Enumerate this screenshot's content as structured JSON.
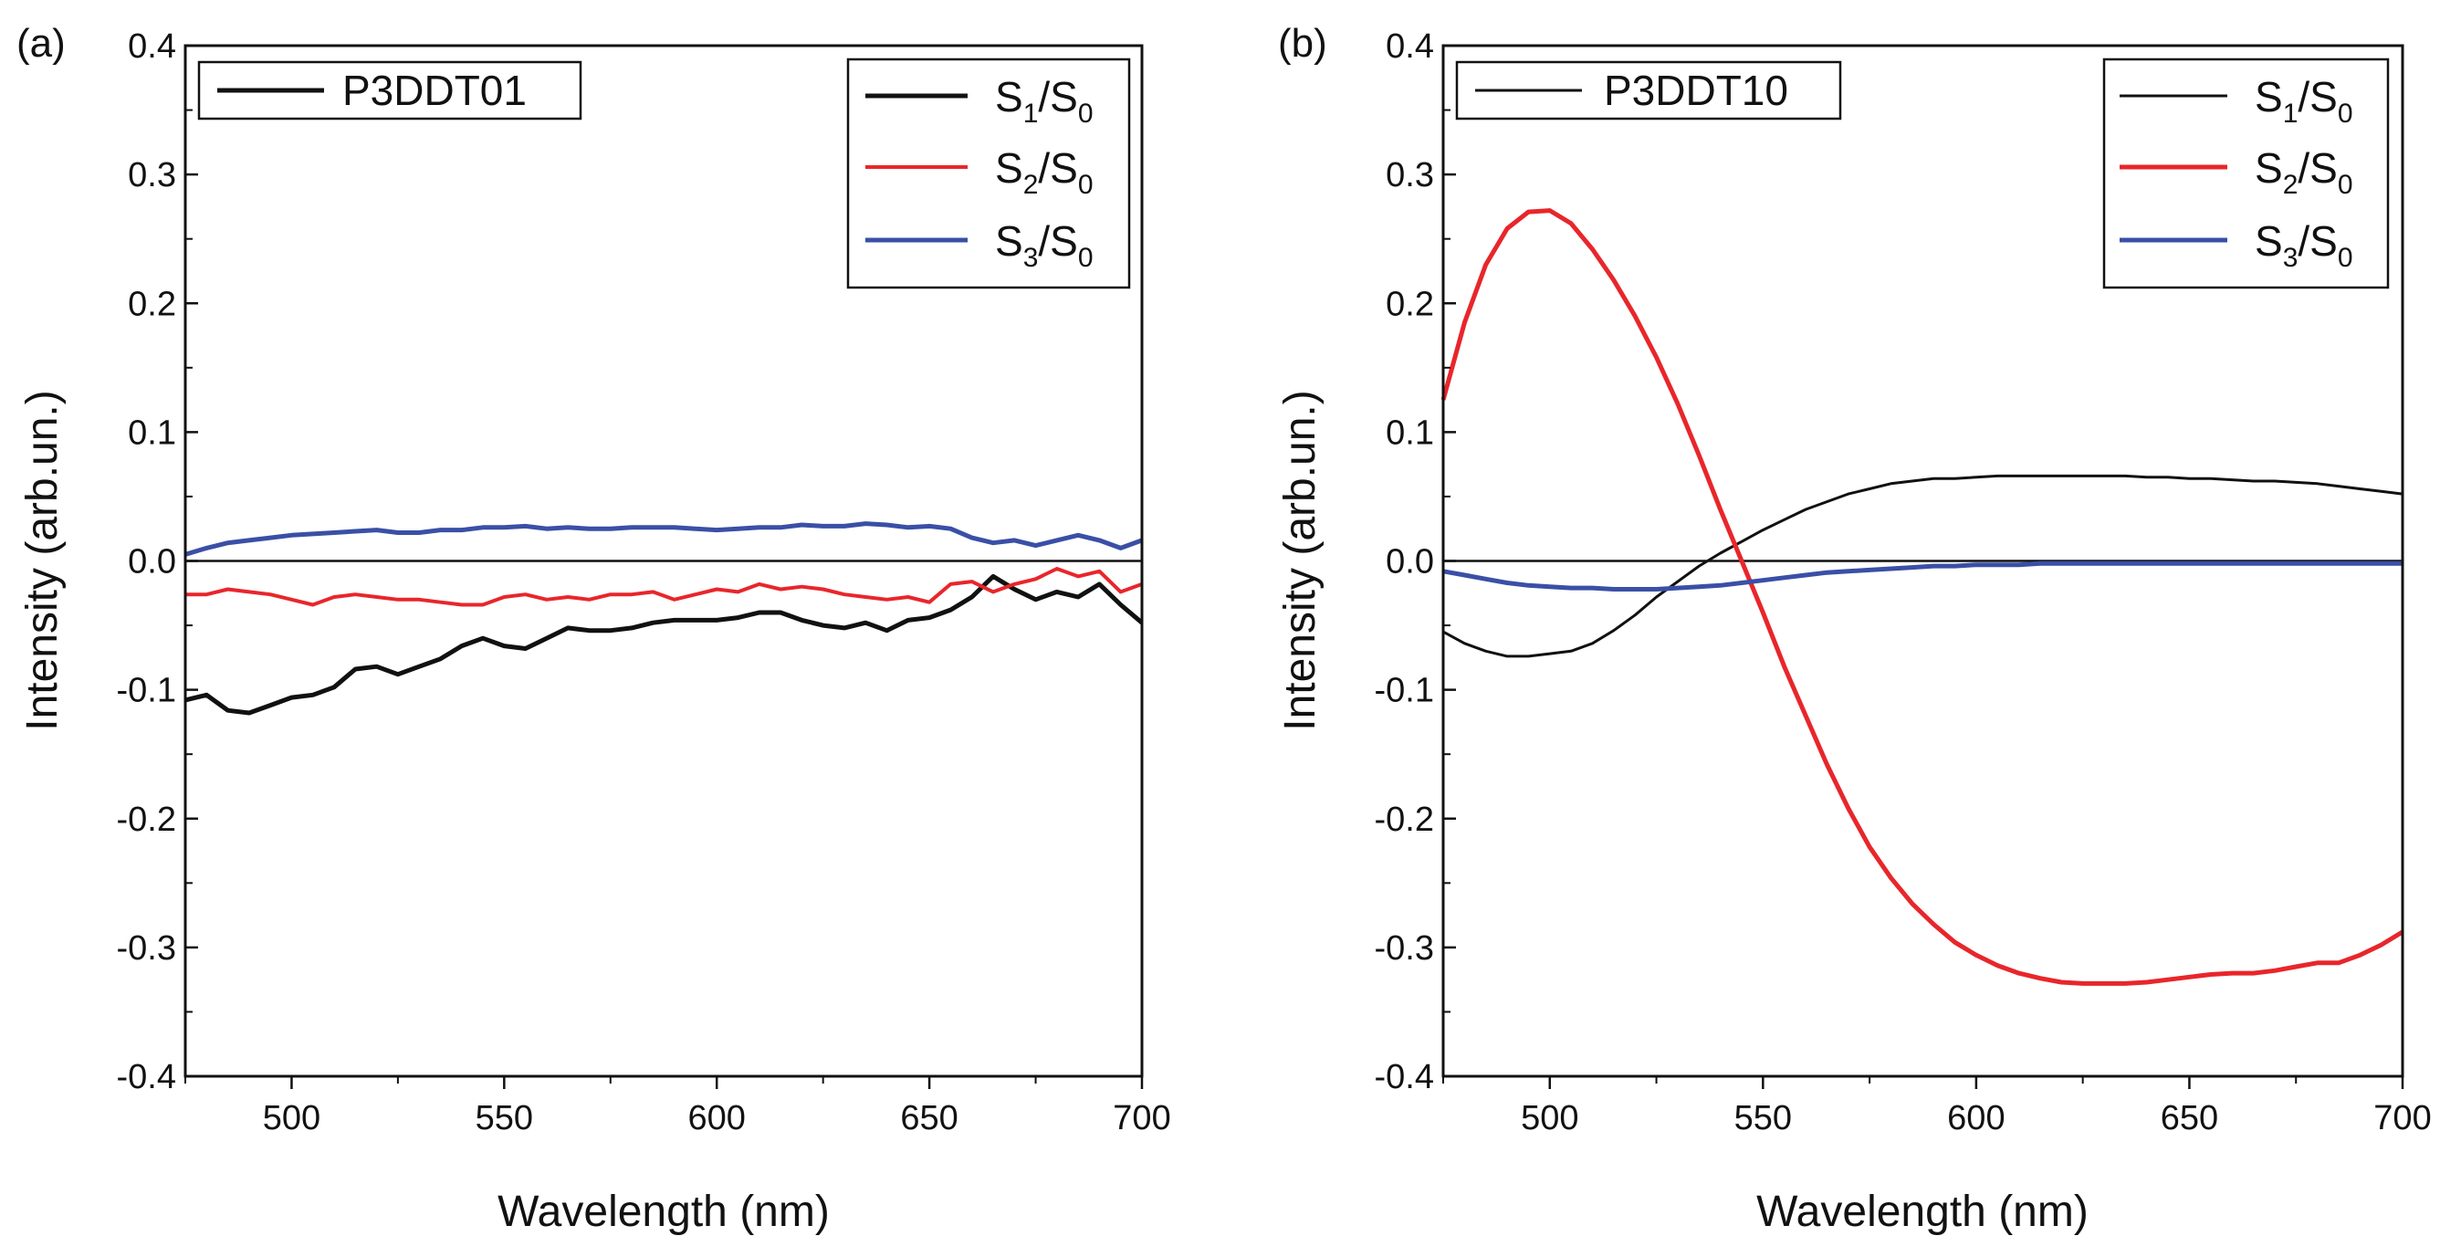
{
  "figure": {
    "colors": {
      "S1": "#111111",
      "S2": "#e8262b",
      "S3": "#3a4fa6",
      "axis": "#111111"
    }
  },
  "chart_data": [
    {
      "type": "line",
      "panel_label": "(a)",
      "sample_label": "P3DDT01",
      "xlabel": "Wavelength (nm)",
      "ylabel": "Intensity (arb.un.)",
      "xlim": [
        475,
        700
      ],
      "ylim": [
        -0.4,
        0.4
      ],
      "xticks": [
        500,
        550,
        600,
        650,
        700
      ],
      "xtick_labels": [
        "500",
        "550",
        "600",
        "650",
        "700"
      ],
      "yticks": [
        -0.4,
        -0.3,
        -0.2,
        -0.1,
        0.0,
        0.1,
        0.2,
        0.3,
        0.4
      ],
      "ytick_labels": [
        "-0.4",
        "-0.3",
        "-0.2",
        "-0.1",
        "0.0",
        "0.1",
        "0.2",
        "0.3",
        "0.4"
      ],
      "zero_line": true,
      "legend": {
        "position": "top-right",
        "entries": [
          {
            "main": "S",
            "sub1": "1",
            "slash": "/S",
            "sub2": "0"
          },
          {
            "main": "S",
            "sub1": "2",
            "slash": "/S",
            "sub2": "0"
          },
          {
            "main": "S",
            "sub1": "3",
            "slash": "/S",
            "sub2": "0"
          }
        ]
      },
      "series": [
        {
          "name": "S1/S0",
          "x": [
            475,
            480,
            485,
            490,
            495,
            500,
            505,
            510,
            515,
            520,
            525,
            530,
            535,
            540,
            545,
            550,
            555,
            560,
            565,
            570,
            575,
            580,
            585,
            590,
            595,
            600,
            605,
            610,
            615,
            620,
            625,
            630,
            635,
            640,
            645,
            650,
            655,
            660,
            665,
            670,
            675,
            680,
            685,
            690,
            695,
            700
          ],
          "y": [
            -0.108,
            -0.104,
            -0.116,
            -0.118,
            -0.112,
            -0.106,
            -0.104,
            -0.098,
            -0.084,
            -0.082,
            -0.088,
            -0.082,
            -0.076,
            -0.066,
            -0.06,
            -0.066,
            -0.068,
            -0.06,
            -0.052,
            -0.054,
            -0.054,
            -0.052,
            -0.048,
            -0.046,
            -0.046,
            -0.046,
            -0.044,
            -0.04,
            -0.04,
            -0.046,
            -0.05,
            -0.052,
            -0.048,
            -0.054,
            -0.046,
            -0.044,
            -0.038,
            -0.028,
            -0.012,
            -0.022,
            -0.03,
            -0.024,
            -0.028,
            -0.018,
            -0.034,
            -0.048
          ]
        },
        {
          "name": "S2/S0",
          "x": [
            475,
            480,
            485,
            490,
            495,
            500,
            505,
            510,
            515,
            520,
            525,
            530,
            535,
            540,
            545,
            550,
            555,
            560,
            565,
            570,
            575,
            580,
            585,
            590,
            595,
            600,
            605,
            610,
            615,
            620,
            625,
            630,
            635,
            640,
            645,
            650,
            655,
            660,
            665,
            670,
            675,
            680,
            685,
            690,
            695,
            700
          ],
          "y": [
            -0.026,
            -0.026,
            -0.022,
            -0.024,
            -0.026,
            -0.03,
            -0.034,
            -0.028,
            -0.026,
            -0.028,
            -0.03,
            -0.03,
            -0.032,
            -0.034,
            -0.034,
            -0.028,
            -0.026,
            -0.03,
            -0.028,
            -0.03,
            -0.026,
            -0.026,
            -0.024,
            -0.03,
            -0.026,
            -0.022,
            -0.024,
            -0.018,
            -0.022,
            -0.02,
            -0.022,
            -0.026,
            -0.028,
            -0.03,
            -0.028,
            -0.032,
            -0.018,
            -0.016,
            -0.024,
            -0.018,
            -0.014,
            -0.006,
            -0.012,
            -0.008,
            -0.024,
            -0.018
          ]
        },
        {
          "name": "S3/S0",
          "x": [
            475,
            480,
            485,
            490,
            495,
            500,
            505,
            510,
            515,
            520,
            525,
            530,
            535,
            540,
            545,
            550,
            555,
            560,
            565,
            570,
            575,
            580,
            585,
            590,
            595,
            600,
            605,
            610,
            615,
            620,
            625,
            630,
            635,
            640,
            645,
            650,
            655,
            660,
            665,
            670,
            675,
            680,
            685,
            690,
            695,
            700
          ],
          "y": [
            0.005,
            0.01,
            0.014,
            0.016,
            0.018,
            0.02,
            0.021,
            0.022,
            0.023,
            0.024,
            0.022,
            0.022,
            0.024,
            0.024,
            0.026,
            0.026,
            0.027,
            0.025,
            0.026,
            0.025,
            0.025,
            0.026,
            0.026,
            0.026,
            0.025,
            0.024,
            0.025,
            0.026,
            0.026,
            0.028,
            0.027,
            0.027,
            0.029,
            0.028,
            0.026,
            0.027,
            0.025,
            0.018,
            0.014,
            0.016,
            0.012,
            0.016,
            0.02,
            0.016,
            0.01,
            0.016
          ]
        }
      ]
    },
    {
      "type": "line",
      "panel_label": "(b)",
      "sample_label": "P3DDT10",
      "xlabel": "Wavelength (nm)",
      "ylabel": "Intensity (arb.un.)",
      "xlim": [
        475,
        700
      ],
      "ylim": [
        -0.4,
        0.4
      ],
      "xticks": [
        500,
        550,
        600,
        650,
        700
      ],
      "xtick_labels": [
        "500",
        "550",
        "600",
        "650",
        "700"
      ],
      "yticks": [
        -0.4,
        -0.3,
        -0.2,
        -0.1,
        0.0,
        0.1,
        0.2,
        0.3,
        0.4
      ],
      "ytick_labels": [
        "-0.4",
        "-0.3",
        "-0.2",
        "-0.1",
        "0.0",
        "0.1",
        "0.2",
        "0.3",
        "0.4"
      ],
      "zero_line": true,
      "legend": {
        "position": "top-right",
        "entries": [
          {
            "main": "S",
            "sub1": "1",
            "slash": "/S",
            "sub2": "0"
          },
          {
            "main": "S",
            "sub1": "2",
            "slash": "/S",
            "sub2": "0"
          },
          {
            "main": "S",
            "sub1": "3",
            "slash": "/S",
            "sub2": "0"
          }
        ]
      },
      "series": [
        {
          "name": "S1/S0",
          "x": [
            475,
            480,
            485,
            490,
            495,
            500,
            505,
            510,
            515,
            520,
            525,
            530,
            535,
            540,
            545,
            550,
            555,
            560,
            565,
            570,
            575,
            580,
            585,
            590,
            595,
            600,
            605,
            610,
            615,
            620,
            625,
            630,
            635,
            640,
            645,
            650,
            655,
            660,
            665,
            670,
            675,
            680,
            685,
            690,
            695,
            700
          ],
          "y": [
            -0.055,
            -0.064,
            -0.07,
            -0.074,
            -0.074,
            -0.072,
            -0.07,
            -0.064,
            -0.054,
            -0.042,
            -0.028,
            -0.016,
            -0.004,
            0.006,
            0.015,
            0.024,
            0.032,
            0.04,
            0.046,
            0.052,
            0.056,
            0.06,
            0.062,
            0.064,
            0.064,
            0.065,
            0.066,
            0.066,
            0.066,
            0.066,
            0.066,
            0.066,
            0.066,
            0.065,
            0.065,
            0.064,
            0.064,
            0.063,
            0.062,
            0.062,
            0.061,
            0.06,
            0.058,
            0.056,
            0.054,
            0.052
          ]
        },
        {
          "name": "S2/S0",
          "x": [
            475,
            480,
            485,
            490,
            495,
            500,
            505,
            510,
            515,
            520,
            525,
            530,
            535,
            540,
            545,
            550,
            555,
            560,
            565,
            570,
            575,
            580,
            585,
            590,
            595,
            600,
            605,
            610,
            615,
            620,
            625,
            630,
            635,
            640,
            645,
            650,
            655,
            660,
            665,
            670,
            675,
            680,
            685,
            690,
            695,
            700
          ],
          "y": [
            0.125,
            0.185,
            0.23,
            0.258,
            0.271,
            0.272,
            0.262,
            0.242,
            0.218,
            0.19,
            0.158,
            0.122,
            0.082,
            0.04,
            0.0,
            -0.04,
            -0.082,
            -0.12,
            -0.158,
            -0.192,
            -0.222,
            -0.246,
            -0.266,
            -0.282,
            -0.296,
            -0.306,
            -0.314,
            -0.32,
            -0.324,
            -0.327,
            -0.328,
            -0.328,
            -0.328,
            -0.327,
            -0.325,
            -0.323,
            -0.321,
            -0.32,
            -0.32,
            -0.318,
            -0.315,
            -0.312,
            -0.312,
            -0.306,
            -0.298,
            -0.288
          ]
        },
        {
          "name": "S3/S0",
          "x": [
            475,
            480,
            485,
            490,
            495,
            500,
            505,
            510,
            515,
            520,
            525,
            530,
            535,
            540,
            545,
            550,
            555,
            560,
            565,
            570,
            575,
            580,
            585,
            590,
            595,
            600,
            605,
            610,
            615,
            620,
            625,
            630,
            635,
            640,
            645,
            650,
            655,
            660,
            665,
            670,
            675,
            680,
            685,
            690,
            695,
            700
          ],
          "y": [
            -0.008,
            -0.011,
            -0.014,
            -0.017,
            -0.019,
            -0.02,
            -0.021,
            -0.021,
            -0.022,
            -0.022,
            -0.022,
            -0.021,
            -0.02,
            -0.019,
            -0.017,
            -0.015,
            -0.013,
            -0.011,
            -0.009,
            -0.008,
            -0.007,
            -0.006,
            -0.005,
            -0.004,
            -0.004,
            -0.003,
            -0.003,
            -0.003,
            -0.002,
            -0.002,
            -0.002,
            -0.002,
            -0.002,
            -0.002,
            -0.002,
            -0.002,
            -0.002,
            -0.002,
            -0.002,
            -0.002,
            -0.002,
            -0.002,
            -0.002,
            -0.002,
            -0.002,
            -0.002
          ]
        }
      ]
    }
  ]
}
